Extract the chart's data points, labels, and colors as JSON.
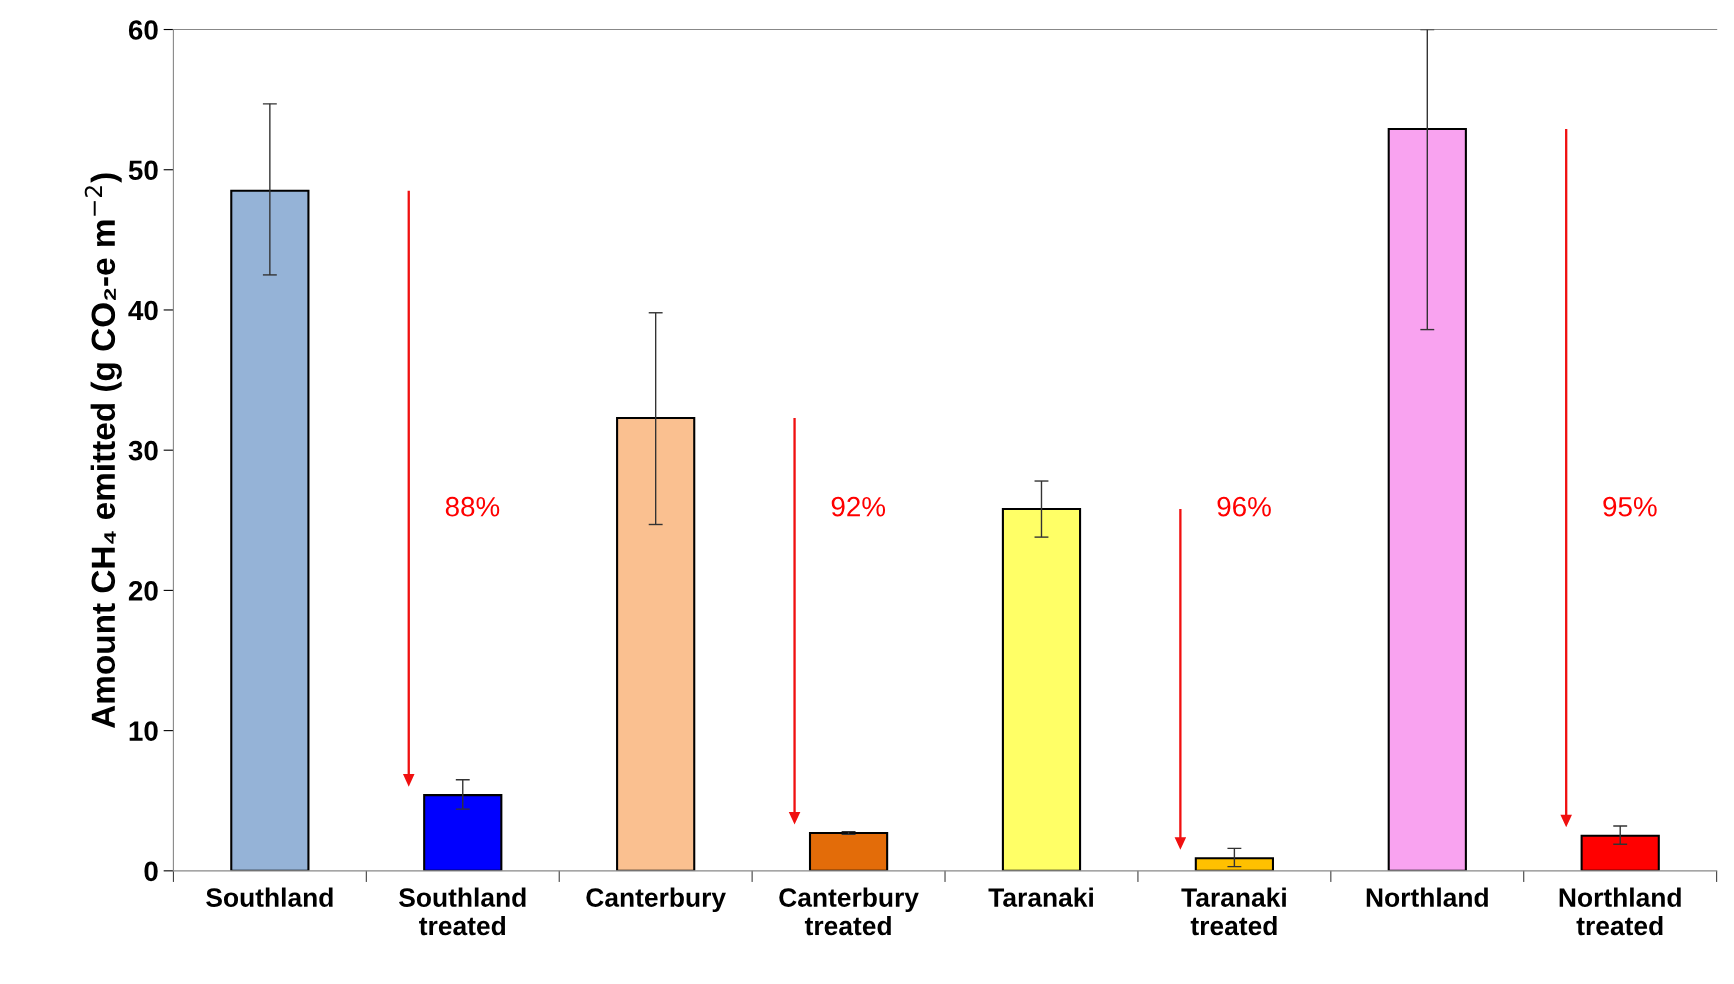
{
  "chart_data": {
    "type": "bar",
    "ylabel": "Amount CH₄ emitted (g CO₂-e m$^{−2}$)",
    "categories": [
      "Southland",
      "Southland\ntreated",
      "Canterbury",
      "Canterbury\ntreated",
      "Taranaki",
      "Taranaki\ntreated",
      "Northland",
      "Northland\ntreated"
    ],
    "values": [
      48.5,
      5.4,
      32.3,
      2.7,
      25.8,
      0.9,
      52.9,
      2.5
    ],
    "colors": [
      "#95b3d7",
      "#0000ff",
      "#fac090",
      "#e36c09",
      "#ffff66",
      "#ffc000",
      "#f9a3f0",
      "#ff0000"
    ],
    "errors": [
      [
        42.5,
        54.7
      ],
      [
        4.4,
        6.5
      ],
      [
        24.7,
        39.8
      ],
      [
        2.6,
        2.8
      ],
      [
        23.8,
        27.8
      ],
      [
        0.3,
        1.6
      ],
      [
        38.6,
        60
      ],
      [
        1.9,
        3.2
      ]
    ],
    "ylim": [
      0,
      60
    ],
    "yticks": [
      0,
      10,
      20,
      30,
      40,
      50,
      60
    ],
    "grid": false,
    "annotations": [
      "88%",
      "92%",
      "96%",
      "95%"
    ]
  }
}
